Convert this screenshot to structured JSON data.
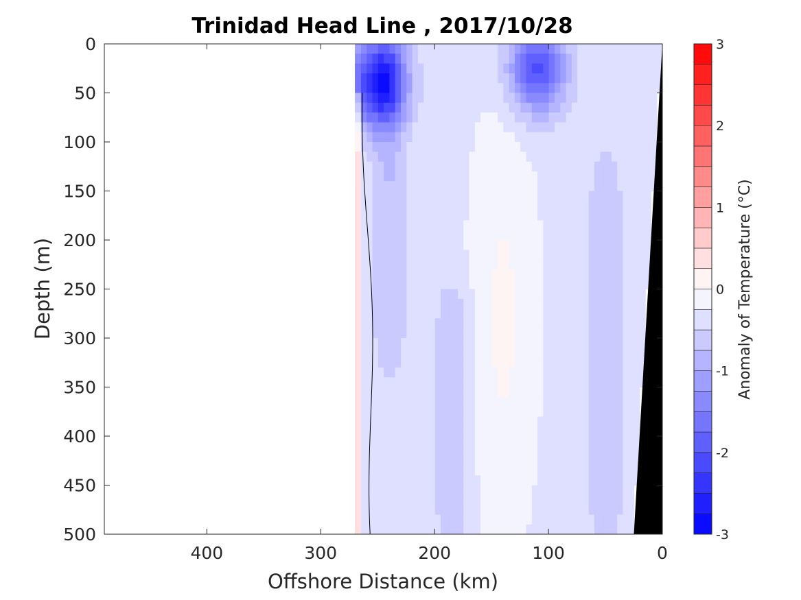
{
  "chart_data": {
    "type": "heatmap",
    "title": "Trinidad Head Line , 2017/10/28",
    "xlabel": "Offshore Distance (km)",
    "ylabel": "Depth (m)",
    "xlim": [
      490,
      0
    ],
    "ylim": [
      0,
      500
    ],
    "x_reversed": true,
    "y_reversed": true,
    "x_ticks": [
      400,
      300,
      200,
      100,
      0
    ],
    "y_ticks": [
      0,
      50,
      100,
      150,
      200,
      250,
      300,
      350,
      400,
      450,
      500
    ],
    "x_tick_labels": [
      "400",
      "300",
      "200",
      "100",
      "0"
    ],
    "y_tick_labels": [
      "0",
      "50",
      "100",
      "150",
      "200",
      "250",
      "300",
      "350",
      "400",
      "450",
      "500"
    ],
    "colorbar": {
      "label": "Anomaly of Temperature (°C)",
      "range": [
        -3,
        3
      ],
      "ticks": [
        3,
        2,
        1,
        0,
        -1,
        -2,
        -3
      ],
      "tick_labels": [
        "3",
        "2",
        "1",
        "0",
        "-1",
        "-2",
        "-3"
      ],
      "levels": [
        -3,
        -2.75,
        -2.5,
        -2.25,
        -2,
        -1.75,
        -1.5,
        -1.25,
        -1,
        -0.75,
        -0.5,
        -0.25,
        0,
        0.25,
        0.5,
        0.75,
        1,
        1.25,
        1.5,
        1.75,
        2,
        2.25,
        2.5,
        2.75,
        3
      ],
      "colormap": "blue-white-red"
    },
    "data_extent_km": [
      270,
      0
    ],
    "contour_level": 0,
    "features": [
      {
        "kind": "cold-core",
        "x_center_km": 250,
        "depth_center_m": 40,
        "anomaly": -2.25
      },
      {
        "kind": "cold-core",
        "x_center_km": 110,
        "depth_center_m": 25,
        "anomaly": -1.75
      },
      {
        "kind": "cold-band",
        "x_center_km": 240,
        "depth_range_m": [
          0,
          300
        ],
        "anomaly": -0.75
      },
      {
        "kind": "cold-band",
        "x_center_km": 185,
        "depth_range_m": [
          280,
          480
        ],
        "anomaly": -0.75
      },
      {
        "kind": "cold-band",
        "x_center_km": 50,
        "depth_range_m": [
          150,
          480
        ],
        "anomaly": -0.75
      },
      {
        "kind": "warm-strip",
        "x_center_km": 268,
        "depth_range_m": [
          50,
          500
        ],
        "anomaly": 0.25
      },
      {
        "kind": "bathymetry",
        "x_at_500m_km": 25,
        "x_at_0m_km": 0
      }
    ]
  }
}
